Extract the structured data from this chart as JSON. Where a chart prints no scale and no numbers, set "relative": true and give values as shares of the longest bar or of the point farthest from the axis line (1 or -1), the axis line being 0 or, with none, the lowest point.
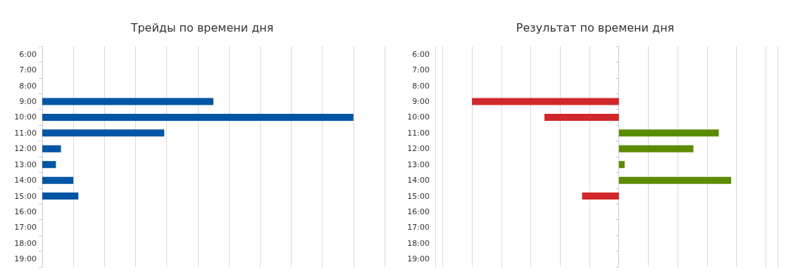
{
  "chart_data": [
    {
      "type": "bar",
      "orientation": "horizontal",
      "relative": true,
      "title": "Трейды по времени дня",
      "categories": [
        "6:00",
        "7:00",
        "8:00",
        "9:00",
        "10:00",
        "11:00",
        "12:00",
        "13:00",
        "14:00",
        "15:00",
        "16:00",
        "17:00",
        "18:00",
        "19:00"
      ],
      "values": [
        null,
        null,
        null,
        0.55,
        1,
        0.392,
        0.06,
        0.044,
        0.1,
        0.116,
        null,
        null,
        null,
        null
      ],
      "color": "#0055a5",
      "grid": "x"
    },
    {
      "type": "bar",
      "orientation": "horizontal",
      "relative": true,
      "title": "Результат по времени дня",
      "categories": [
        "6:00",
        "7:00",
        "8:00",
        "9:00",
        "10:00",
        "11:00",
        "12:00",
        "13:00",
        "14:00",
        "15:00",
        "16:00",
        "17:00",
        "18:00",
        "19:00"
      ],
      "values": [
        null,
        null,
        null,
        -1,
        -0.507,
        0.68,
        0.507,
        0.039,
        0.764,
        -0.251,
        null,
        null,
        null,
        null
      ],
      "colors": [
        null,
        null,
        null,
        "#d0282a",
        "#d0282a",
        "#5b8c00",
        "#5b8c00",
        "#5b8c00",
        "#5b8c00",
        "#d0282a",
        null,
        null,
        null,
        null
      ],
      "grid": "x"
    }
  ]
}
